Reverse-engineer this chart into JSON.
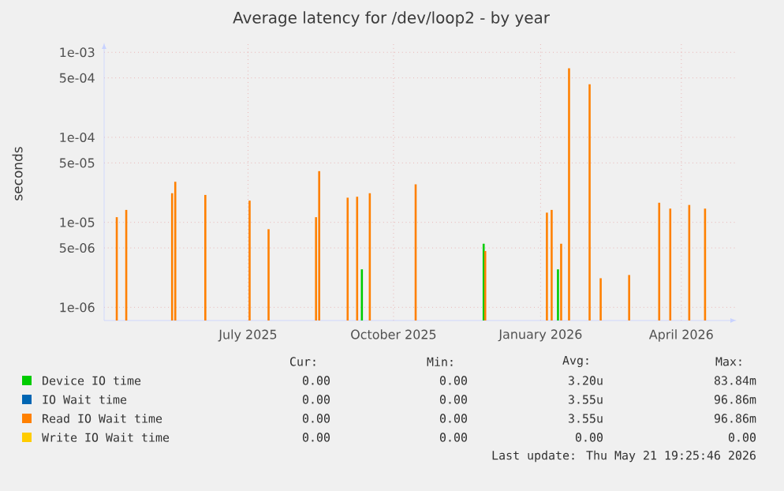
{
  "chart_data": {
    "type": "bar",
    "title": "Average latency for /dev/loop2 - by year",
    "ylabel": "seconds",
    "log": "y",
    "grid": true,
    "legend": "bottom",
    "xlim": [
      "2025-04-16",
      "2026-05-21"
    ],
    "xticks": [
      {
        "value": "2025-07-16",
        "label": "July 2025"
      },
      {
        "value": "2025-10-16",
        "label": "October 2025"
      },
      {
        "value": "2026-01-17",
        "label": "January 2026"
      },
      {
        "value": "2026-04-16",
        "label": "April 2026"
      }
    ],
    "ylim": [
      7e-07,
      0.0013
    ],
    "yticks": [
      {
        "value": 1e-06,
        "label": "1e-06"
      },
      {
        "value": 5e-06,
        "label": "5e-06"
      },
      {
        "value": 1e-05,
        "label": "1e-05"
      },
      {
        "value": 5e-05,
        "label": "5e-05"
      },
      {
        "value": 0.0001,
        "label": "1e-04"
      },
      {
        "value": 0.0005,
        "label": "5e-04"
      },
      {
        "value": 0.001,
        "label": "1e-03"
      }
    ],
    "series": [
      {
        "name": "Device IO time",
        "color": "#00cc00",
        "x": [
          "2025-09-26",
          "2025-12-12",
          "2026-01-28"
        ],
        "values": [
          2.8e-06,
          5.6e-06,
          2.8e-06
        ]
      },
      {
        "name": "IO Wait time",
        "color": "#0066b3"
      },
      {
        "name": "Read IO Wait time",
        "color": "#ff8000",
        "x": [
          "2025-04-24",
          "2025-04-30",
          "2025-05-29",
          "2025-05-31",
          "2025-06-19",
          "2025-07-17",
          "2025-07-29",
          "2025-08-28",
          "2025-08-30",
          "2025-09-17",
          "2025-09-23",
          "2025-10-01",
          "2025-10-30",
          "2025-12-13",
          "2026-01-21",
          "2026-01-24",
          "2026-01-30",
          "2026-02-04",
          "2026-02-17",
          "2026-02-24",
          "2026-03-14",
          "2026-04-02",
          "2026-04-09",
          "2026-04-21",
          "2026-05-01"
        ],
        "values": [
          1.15e-05,
          1.4e-05,
          2.2e-05,
          3e-05,
          2.1e-05,
          1.8e-05,
          8.3e-06,
          1.15e-05,
          4e-05,
          1.95e-05,
          2e-05,
          2.2e-05,
          2.8e-05,
          4.6e-06,
          1.3e-05,
          1.4e-05,
          5.6e-06,
          0.00065,
          0.00042,
          2.2e-06,
          2.4e-06,
          1.7e-05,
          1.45e-05,
          1.6e-05,
          1.45e-05
        ]
      },
      {
        "name": "Write IO Wait time",
        "color": "#ffcc00"
      }
    ],
    "annotations": [
      "Cur:",
      "Min:",
      "Avg:",
      "Max:",
      "0.00",
      "0.00",
      "3.20u",
      "83.84m",
      "0.00",
      "0.00",
      "3.55u",
      "96.86m",
      "0.00",
      "0.00",
      "3.55u",
      "96.86m",
      "0.00",
      "0.00",
      "0.00",
      "0.00",
      "Last update: Thu May 21 19:25:46 2026"
    ]
  }
}
